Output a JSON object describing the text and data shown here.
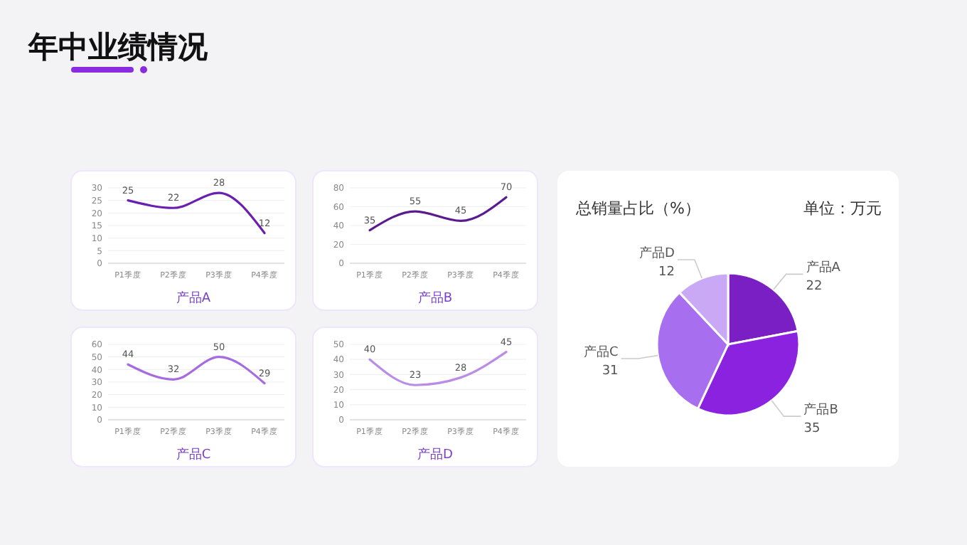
{
  "chart_data": [
    {
      "type": "other",
      "title": "年中业绩情况"
    },
    {
      "type": "line",
      "xlabel": "产品A",
      "categories": [
        "P1季度",
        "P2季度",
        "P3季度",
        "P4季度"
      ],
      "values": [
        25,
        22,
        28,
        12
      ],
      "color": "#6a1fb0",
      "ylim": [
        0,
        30
      ],
      "yticks": [
        0,
        5,
        10,
        15,
        20,
        25,
        30
      ],
      "grid": "y",
      "data_labels": true
    },
    {
      "type": "line",
      "xlabel": "产品B",
      "categories": [
        "P1季度",
        "P2季度",
        "P3季度",
        "P4季度"
      ],
      "values": [
        35,
        55,
        45,
        70
      ],
      "color": "#5a1a90",
      "ylim": [
        0,
        80
      ],
      "yticks": [
        0,
        20,
        40,
        60,
        80
      ],
      "grid": "y",
      "data_labels": true
    },
    {
      "type": "line",
      "xlabel": "产品C",
      "categories": [
        "P1季度",
        "P2季度",
        "P3季度",
        "P4季度"
      ],
      "values": [
        44,
        32,
        50,
        29
      ],
      "color": "#a56be0",
      "ylim": [
        0,
        60
      ],
      "yticks": [
        0,
        10,
        20,
        30,
        40,
        50,
        60
      ],
      "grid": "y",
      "data_labels": true
    },
    {
      "type": "line",
      "xlabel": "产品D",
      "categories": [
        "P1季度",
        "P2季度",
        "P3季度",
        "P4季度"
      ],
      "values": [
        40,
        23,
        28,
        45
      ],
      "color": "#b98ce8",
      "ylim": [
        0,
        50
      ],
      "yticks": [
        0,
        10,
        20,
        30,
        40,
        50
      ],
      "grid": "y",
      "data_labels": true
    },
    {
      "type": "pie",
      "title": "总销量占比（%）",
      "subtitle": "单位：万元",
      "categories": [
        "产品A",
        "产品B",
        "产品C",
        "产品D"
      ],
      "values": [
        22,
        35,
        31,
        12
      ],
      "colors": [
        "#7a1fc4",
        "#8a22e0",
        "#a86ef0",
        "#c9a8f5"
      ],
      "data_labels": true
    }
  ]
}
